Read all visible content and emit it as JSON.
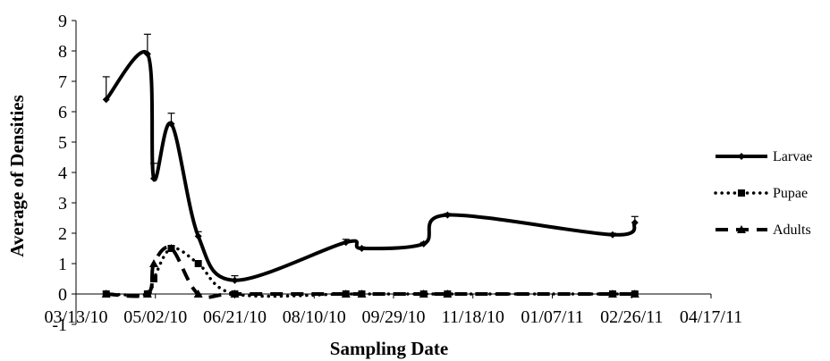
{
  "chart_data": {
    "type": "line",
    "xlabel": "Sampling Date",
    "ylabel": "Average of Densities",
    "ylim": [
      -1,
      9
    ],
    "y_ticks": [
      -1,
      0,
      1,
      2,
      3,
      4,
      5,
      6,
      7,
      8,
      9
    ],
    "x_range": [
      "2010-03-13",
      "2011-04-17"
    ],
    "x_ticks": [
      {
        "date": "2010-03-13",
        "label": "03/13/10"
      },
      {
        "date": "2010-05-02",
        "label": "05/02/10"
      },
      {
        "date": "2010-06-21",
        "label": "06/21/10"
      },
      {
        "date": "2010-08-10",
        "label": "08/10/10"
      },
      {
        "date": "2010-09-29",
        "label": "09/29/10"
      },
      {
        "date": "2010-11-18",
        "label": "11/18/10"
      },
      {
        "date": "2011-01-07",
        "label": "01/07/11"
      },
      {
        "date": "2011-02-26",
        "label": "02/26/11"
      },
      {
        "date": "2011-04-17",
        "label": "04/17/11"
      }
    ],
    "grid": false,
    "legend_position": "right",
    "series": [
      {
        "name": "Larvae",
        "style": "solid",
        "marker": "diamond",
        "color": "#000000",
        "points": [
          {
            "x": "2010-04-01",
            "y": 6.4,
            "err": 0.75
          },
          {
            "x": "2010-04-27",
            "y": 7.9,
            "err": 0.65
          },
          {
            "x": "2010-05-01",
            "y": 3.8,
            "err": 0.5
          },
          {
            "x": "2010-05-12",
            "y": 5.6,
            "err": 0.35
          },
          {
            "x": "2010-05-29",
            "y": 1.9,
            "err": 0.15
          },
          {
            "x": "2010-06-21",
            "y": 0.45,
            "err": 0.15
          },
          {
            "x": "2010-08-30",
            "y": 1.7,
            "err": 0.1
          },
          {
            "x": "2010-09-09",
            "y": 1.5,
            "err": 0.05
          },
          {
            "x": "2010-10-18",
            "y": 1.65,
            "err": 0.05
          },
          {
            "x": "2010-11-02",
            "y": 2.6,
            "err": 0.05
          },
          {
            "x": "2011-02-14",
            "y": 1.95,
            "err": 0.05
          },
          {
            "x": "2011-02-28",
            "y": 2.35,
            "err": 0.2
          }
        ]
      },
      {
        "name": "Pupae",
        "style": "dotted",
        "marker": "square",
        "color": "#000000",
        "points": [
          {
            "x": "2010-04-01",
            "y": 0
          },
          {
            "x": "2010-04-27",
            "y": 0
          },
          {
            "x": "2010-05-01",
            "y": 0.5
          },
          {
            "x": "2010-05-12",
            "y": 1.5
          },
          {
            "x": "2010-05-29",
            "y": 1.0
          },
          {
            "x": "2010-06-21",
            "y": 0
          },
          {
            "x": "2010-08-30",
            "y": 0
          },
          {
            "x": "2010-09-09",
            "y": 0
          },
          {
            "x": "2010-10-18",
            "y": 0
          },
          {
            "x": "2010-11-02",
            "y": 0
          },
          {
            "x": "2011-02-14",
            "y": 0
          },
          {
            "x": "2011-02-28",
            "y": 0
          }
        ]
      },
      {
        "name": "Adults",
        "style": "dashed",
        "marker": "triangle",
        "color": "#000000",
        "points": [
          {
            "x": "2010-04-01",
            "y": 0
          },
          {
            "x": "2010-04-27",
            "y": 0
          },
          {
            "x": "2010-05-01",
            "y": 1.0
          },
          {
            "x": "2010-05-12",
            "y": 1.5
          },
          {
            "x": "2010-05-29",
            "y": 0
          },
          {
            "x": "2010-06-21",
            "y": 0
          },
          {
            "x": "2010-08-30",
            "y": 0
          },
          {
            "x": "2010-09-09",
            "y": 0
          },
          {
            "x": "2010-10-18",
            "y": 0
          },
          {
            "x": "2010-11-02",
            "y": 0
          },
          {
            "x": "2011-02-14",
            "y": 0
          },
          {
            "x": "2011-02-28",
            "y": 0
          }
        ]
      }
    ]
  }
}
